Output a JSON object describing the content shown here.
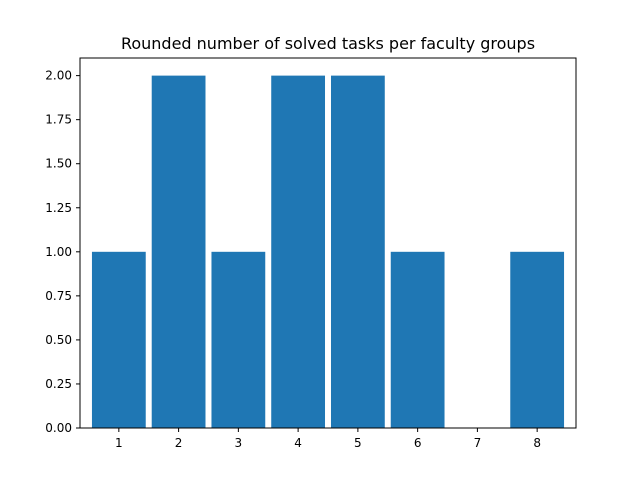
{
  "chart_data": {
    "type": "bar",
    "title": "Rounded number of solved tasks per faculty groups",
    "xlabel": "",
    "ylabel": "",
    "categories": [
      1,
      2,
      3,
      4,
      5,
      6,
      7,
      8
    ],
    "values": [
      1,
      2,
      1,
      2,
      2,
      1,
      0,
      1
    ],
    "ylim": [
      0,
      2.1
    ],
    "yticks": [
      "0.00",
      "0.25",
      "0.50",
      "0.75",
      "1.00",
      "1.25",
      "1.50",
      "1.75",
      "2.00"
    ],
    "xticks": [
      "1",
      "2",
      "3",
      "4",
      "5",
      "6",
      "7",
      "8"
    ],
    "grid": false,
    "legend": false,
    "bar_color": "#1f77b4"
  }
}
